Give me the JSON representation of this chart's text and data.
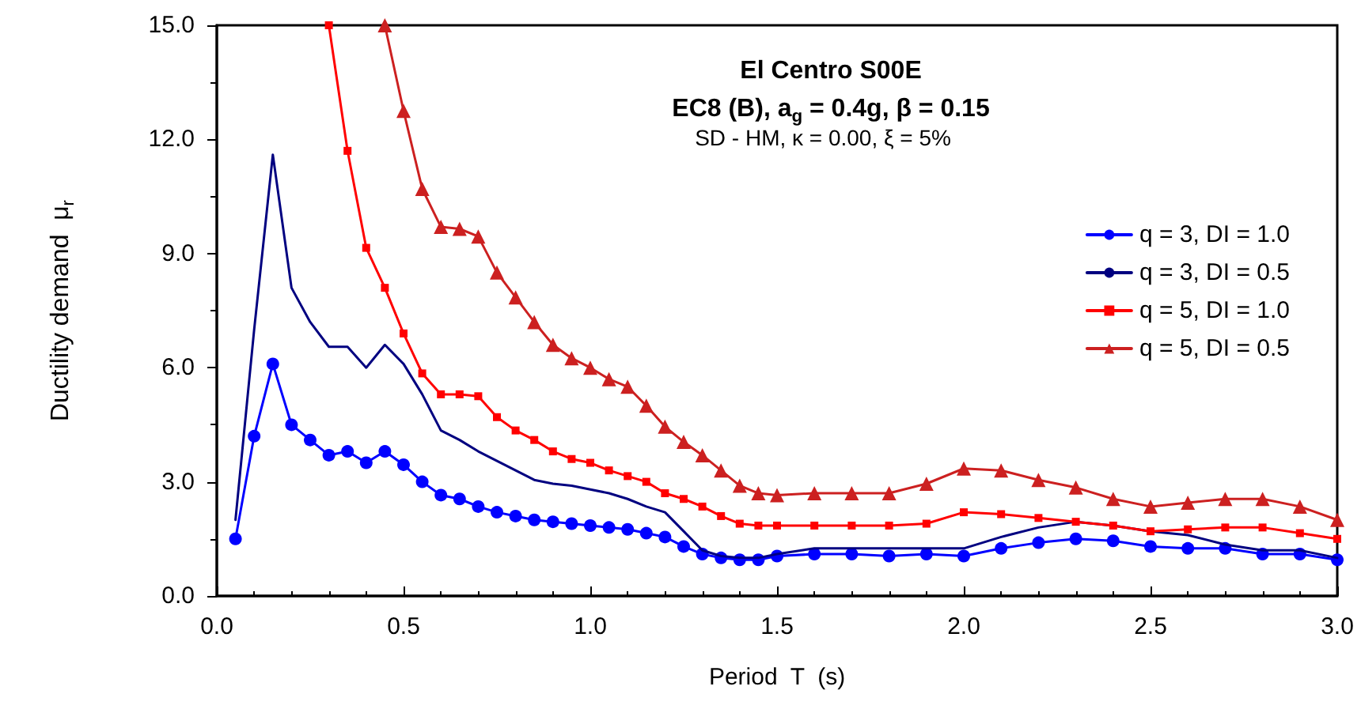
{
  "chart_data": {
    "type": "line",
    "title": "El Centro S00E",
    "subtitle": "EC8 (B), a$_{g}$ = 0.4g, β = 0.15",
    "annotations": [
      "SD - HM, κ = 0.00, ξ = 5%"
    ],
    "xlabel": "Period  T  (s)",
    "ylabel": "Ductility demand  μ$_{r}$",
    "x": [
      0.05,
      0.1,
      0.15,
      0.2,
      0.25,
      0.3,
      0.35,
      0.4,
      0.45,
      0.5,
      0.55,
      0.6,
      0.65,
      0.7,
      0.75,
      0.8,
      0.85,
      0.9,
      0.95,
      1.0,
      1.05,
      1.1,
      1.15,
      1.2,
      1.25,
      1.3,
      1.35,
      1.4,
      1.45,
      1.5,
      1.6,
      1.7,
      1.8,
      1.9,
      2.0,
      2.1,
      2.2,
      2.3,
      2.4,
      2.5,
      2.6,
      2.7,
      2.8,
      2.9,
      3.0
    ],
    "series": [
      {
        "name": "q = 3, DI = 1.0",
        "color": "#0000ff",
        "marker": "circle",
        "values": [
          1.5,
          4.2,
          6.1,
          4.5,
          4.1,
          3.7,
          3.8,
          3.5,
          3.8,
          3.45,
          3.0,
          2.65,
          2.55,
          2.35,
          2.2,
          2.1,
          2.0,
          1.95,
          1.9,
          1.85,
          1.8,
          1.75,
          1.65,
          1.55,
          1.3,
          1.1,
          1.0,
          0.95,
          0.95,
          1.05,
          1.1,
          1.1,
          1.05,
          1.1,
          1.05,
          1.25,
          1.4,
          1.5,
          1.45,
          1.3,
          1.25,
          1.25,
          1.1,
          1.1,
          0.95
        ]
      },
      {
        "name": "q = 3, DI = 0.5",
        "color": "#000080",
        "marker": "none",
        "values": [
          2.0,
          7.0,
          11.6,
          8.1,
          7.2,
          6.55,
          6.55,
          6.0,
          6.6,
          6.1,
          5.3,
          4.35,
          4.1,
          3.8,
          3.55,
          3.3,
          3.05,
          2.95,
          2.9,
          2.8,
          2.7,
          2.55,
          2.35,
          2.2,
          1.7,
          1.2,
          1.05,
          1.0,
          1.0,
          1.1,
          1.25,
          1.25,
          1.25,
          1.25,
          1.25,
          1.55,
          1.8,
          1.95,
          1.85,
          1.7,
          1.6,
          1.35,
          1.2,
          1.2,
          1.0
        ]
      },
      {
        "name": "q = 5, DI = 1.0",
        "color": "#ff0000",
        "marker": "square",
        "values": [
          null,
          null,
          null,
          null,
          null,
          15.0,
          11.7,
          9.15,
          8.1,
          6.9,
          5.85,
          5.3,
          5.3,
          5.25,
          4.7,
          4.35,
          4.1,
          3.8,
          3.6,
          3.5,
          3.3,
          3.15,
          3.0,
          2.7,
          2.55,
          2.35,
          2.1,
          1.9,
          1.85,
          1.85,
          1.85,
          1.85,
          1.85,
          1.9,
          2.2,
          2.15,
          2.05,
          1.95,
          1.85,
          1.7,
          1.75,
          1.8,
          1.8,
          1.65,
          1.5
        ]
      },
      {
        "name": "q = 5, DI = 0.5",
        "color": "#cc2020",
        "marker": "triangle",
        "values": [
          null,
          null,
          null,
          null,
          null,
          null,
          null,
          null,
          15.0,
          12.75,
          10.7,
          9.7,
          9.65,
          9.45,
          8.5,
          7.85,
          7.2,
          6.6,
          6.25,
          6.0,
          5.7,
          5.5,
          5.0,
          4.45,
          4.05,
          3.7,
          3.3,
          2.9,
          2.7,
          2.65,
          2.7,
          2.7,
          2.7,
          2.95,
          3.35,
          3.3,
          3.05,
          2.85,
          2.55,
          2.35,
          2.45,
          2.55,
          2.55,
          2.35,
          2.0
        ]
      }
    ],
    "xlim": [
      0,
      3
    ],
    "xticks": [
      {
        "value": 0,
        "label": "0.0"
      },
      {
        "value": 0.5,
        "label": "0.5"
      },
      {
        "value": 1,
        "label": "1.0"
      },
      {
        "value": 1.5,
        "label": "1.5"
      },
      {
        "value": 2,
        "label": "2.0"
      },
      {
        "value": 2.5,
        "label": "2.5"
      },
      {
        "value": 3,
        "label": "3.0"
      }
    ],
    "ylim": [
      0,
      15
    ],
    "yticks": [
      {
        "value": 0,
        "label": "0.0"
      },
      {
        "value": 3,
        "label": "3.0"
      },
      {
        "value": 6,
        "label": "6.0"
      },
      {
        "value": 9,
        "label": "9.0"
      },
      {
        "value": 12,
        "label": "12.0"
      },
      {
        "value": 15,
        "label": "15.0"
      }
    ],
    "grid": false,
    "legend": "right",
    "line_style": "solid"
  }
}
